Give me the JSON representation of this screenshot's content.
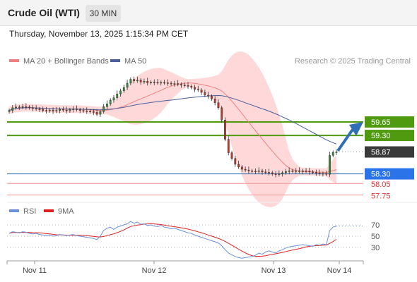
{
  "header": {
    "instrument": "Crude Oil (WTI)",
    "timeframe": "30 MIN",
    "datetime": "Thursday, November 13, 2025 1:15:34 PM CET"
  },
  "legend": {
    "ma20_bb": "MA 20 + Bollinger Bands",
    "ma50": "MA 50",
    "credit": "Research © 2025 Trading Central"
  },
  "rsi_legend": {
    "rsi": "RSI",
    "ma9": "9MA"
  },
  "colors": {
    "up": "#3a8a3a",
    "down": "#c0392b",
    "bollinger": "#ffcfcf",
    "ma20": "#f08080",
    "ma50": "#4a5f9a",
    "resistance": "#4f9a0f",
    "support_blue": "#2f6fb5",
    "support_red": "#f4a0a0",
    "price_badge": "#3a3a3a",
    "badge_blue": "#2a73e8",
    "arrow": "#2f6fb5",
    "rsi_line": "#6a8fdc",
    "rsi_ma": "#e02020"
  },
  "chart_data": [
    {
      "type": "candlestick",
      "x_labels": [
        "Nov 11",
        "Nov 12",
        "Nov 13",
        "Nov 14"
      ],
      "y_range": [
        57.5,
        61.1
      ],
      "last_price": 58.87,
      "levels": [
        {
          "label": "59.65",
          "value": 59.65,
          "kind": "resistance"
        },
        {
          "label": "59.30",
          "value": 59.3,
          "kind": "resistance"
        },
        {
          "label": "58.30",
          "value": 58.3,
          "kind": "pivot"
        },
        {
          "label": "58.05",
          "value": 58.05,
          "kind": "support"
        },
        {
          "label": "57.75",
          "value": 57.75,
          "kind": "support"
        }
      ],
      "projection": {
        "from": 58.87,
        "to": 59.65
      },
      "closes": [
        59.95,
        60.02,
        60.04,
        60.03,
        60.05,
        60.04,
        60.02,
        60.0,
        59.99,
        59.98,
        59.95,
        59.94,
        59.96,
        59.93,
        59.95,
        59.98,
        59.96,
        59.94,
        59.97,
        59.99,
        59.97,
        59.95,
        59.94,
        59.93,
        59.92,
        59.9,
        59.85,
        59.92,
        60.05,
        60.12,
        60.22,
        60.28,
        60.38,
        60.46,
        60.55,
        60.66,
        60.76,
        60.72,
        60.74,
        60.69,
        60.71,
        60.67,
        60.69,
        60.68,
        60.67,
        60.68,
        60.67,
        60.66,
        60.64,
        60.65,
        60.63,
        60.61,
        60.6,
        60.58,
        60.55,
        60.5,
        60.48,
        60.42,
        60.35,
        60.32,
        60.25,
        60.15,
        60.02,
        59.7,
        59.2,
        58.85,
        58.7,
        58.55,
        58.48,
        58.42,
        58.4,
        58.38,
        58.37,
        58.36,
        58.38,
        58.35,
        58.34,
        58.33,
        58.3,
        58.28,
        58.3,
        58.33,
        58.36,
        58.38,
        58.37,
        58.38,
        58.36,
        58.38,
        58.37,
        58.35,
        58.34,
        58.32,
        58.3,
        58.31,
        58.29,
        58.78,
        58.86,
        58.87
      ]
    },
    {
      "type": "line",
      "name": "RSI",
      "y_ticks": [
        70,
        50,
        30
      ],
      "y_range": [
        0,
        100
      ],
      "values": [
        55,
        58,
        57,
        56,
        58,
        57,
        55,
        54,
        55,
        53,
        52,
        51,
        52,
        50,
        51,
        53,
        52,
        51,
        52,
        53,
        51,
        50,
        49,
        48,
        47,
        46,
        44,
        50,
        60,
        64,
        66,
        62,
        66,
        68,
        70,
        72,
        76,
        73,
        75,
        71,
        72,
        69,
        70,
        68,
        67,
        69,
        66,
        65,
        63,
        64,
        62,
        60,
        58,
        56,
        55,
        52,
        50,
        48,
        46,
        44,
        42,
        40,
        38,
        33,
        26,
        20,
        17,
        14,
        12,
        11,
        12,
        13,
        14,
        16,
        20,
        18,
        22,
        24,
        22,
        20,
        24,
        26,
        29,
        31,
        32,
        33,
        34,
        35,
        34,
        33,
        32,
        35,
        34,
        36,
        35,
        60,
        66,
        68
      ]
    }
  ]
}
